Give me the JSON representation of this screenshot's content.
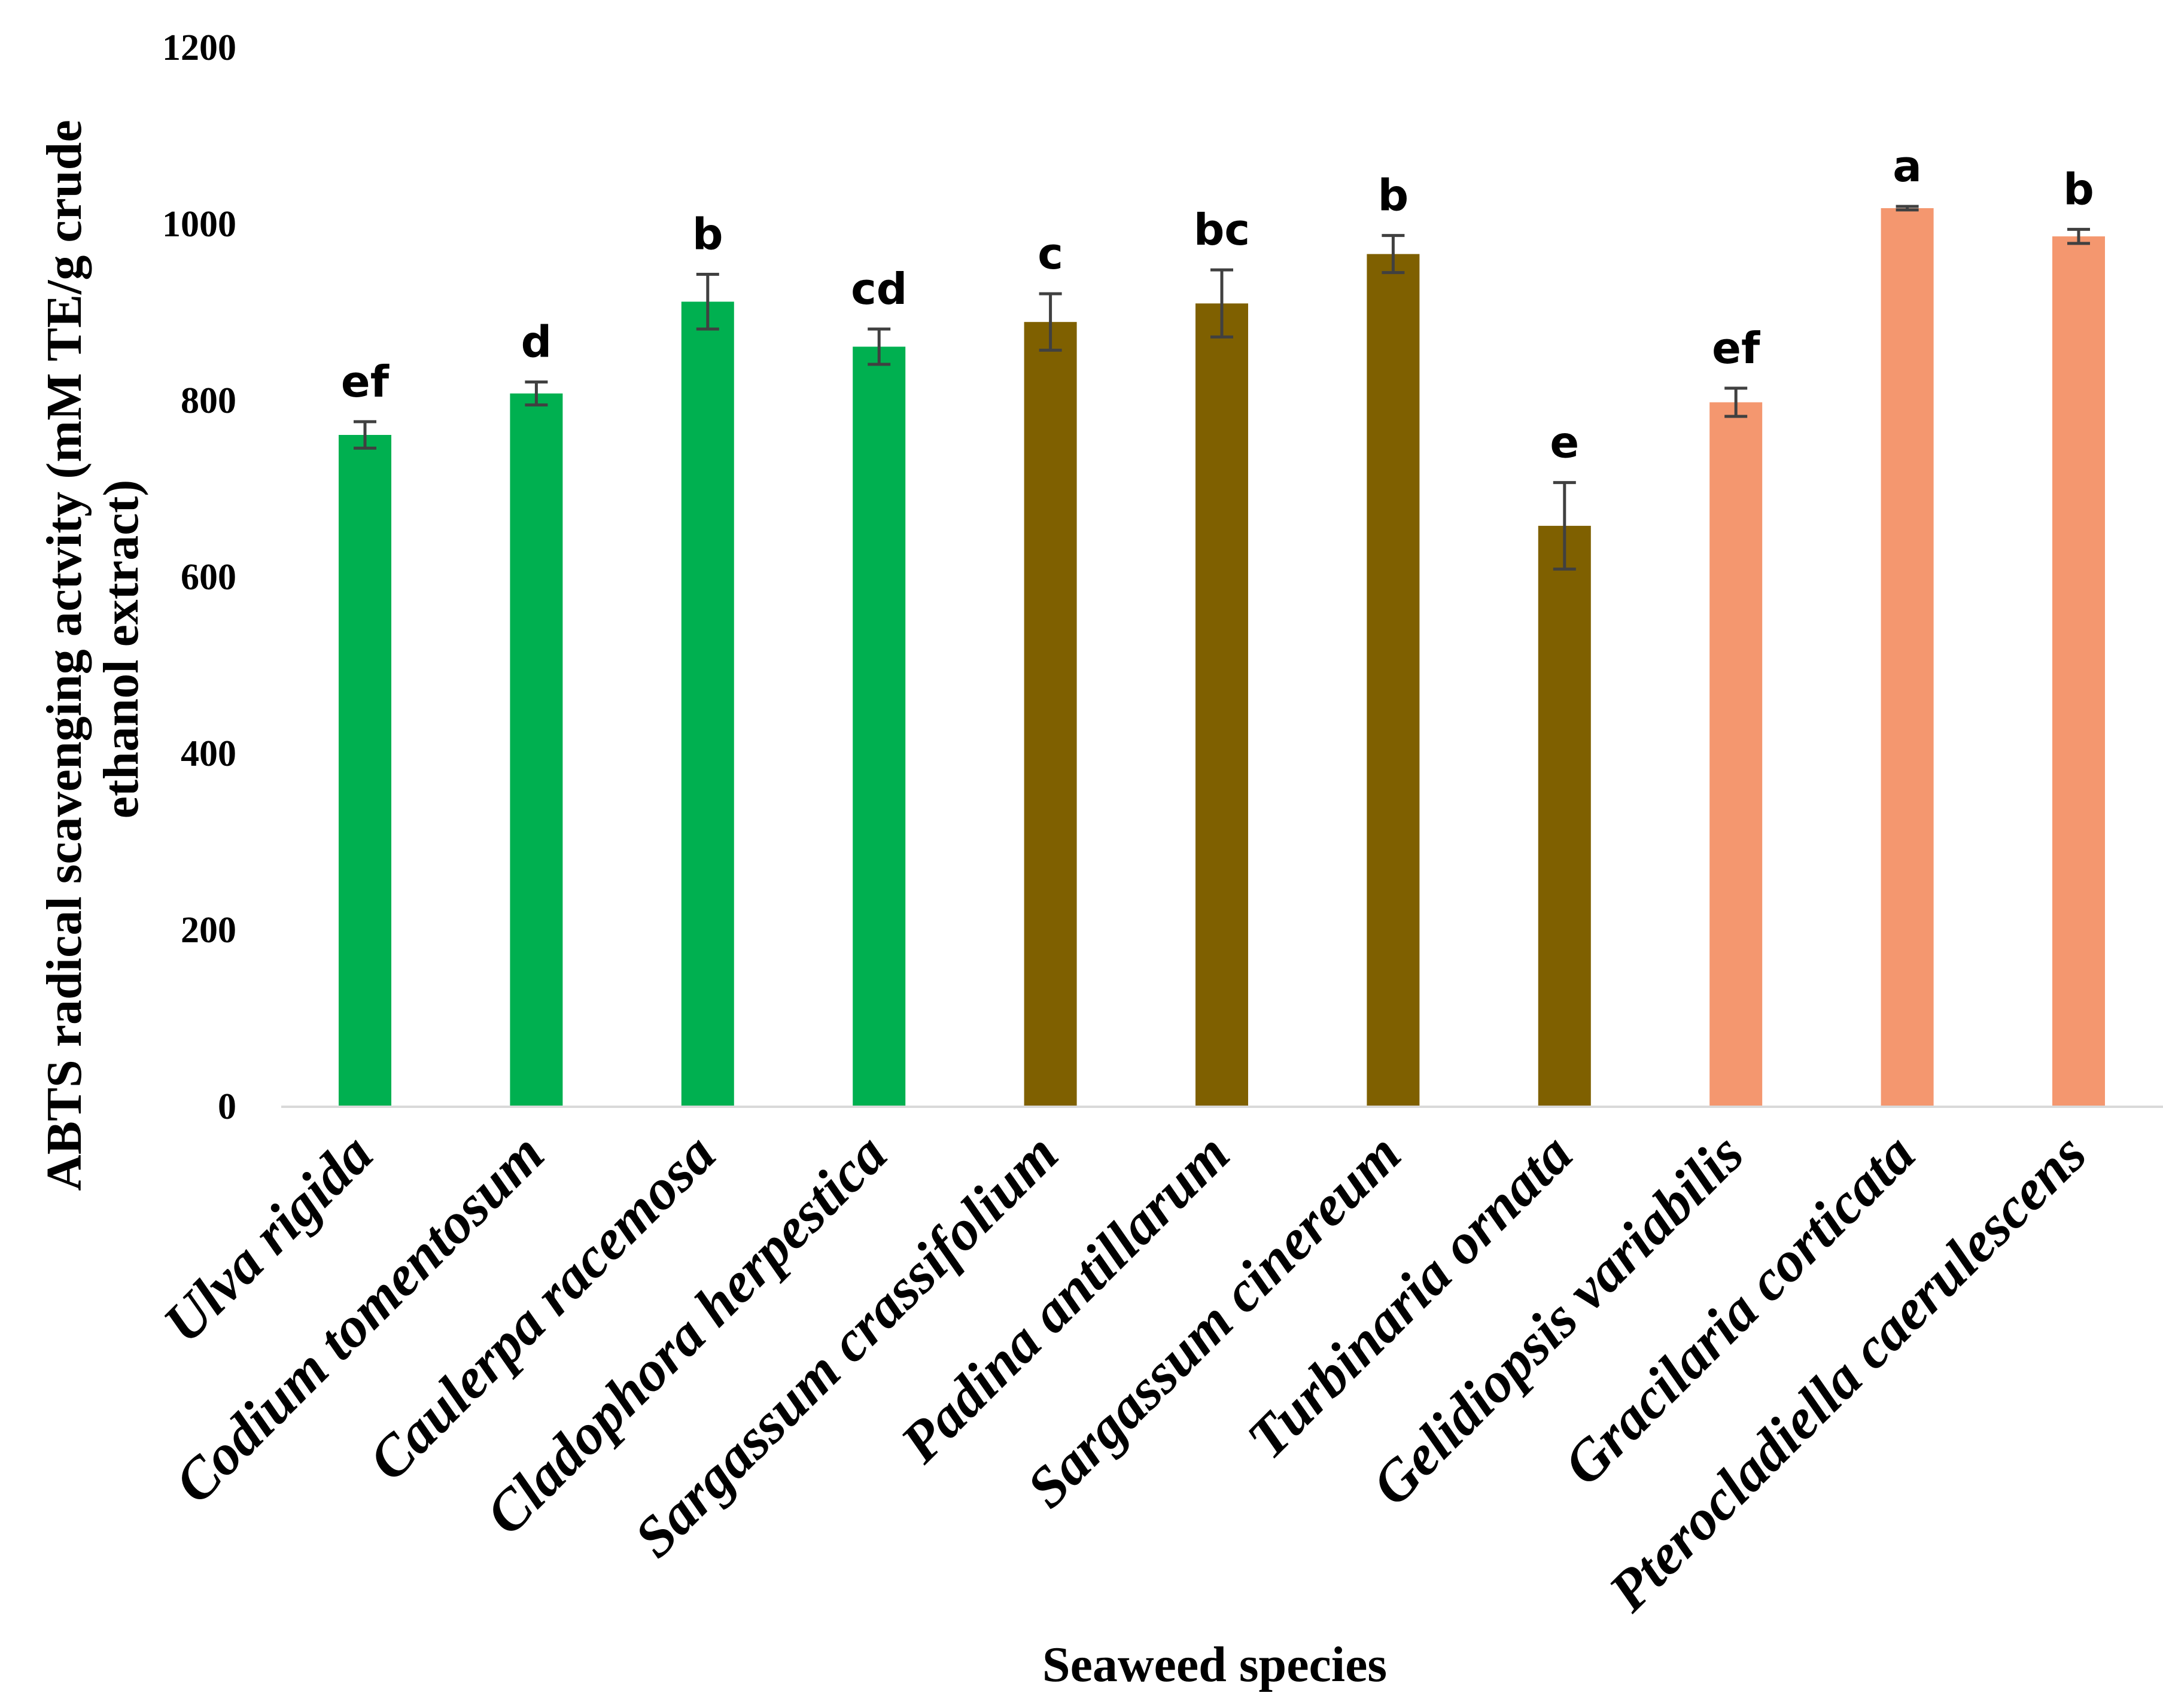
{
  "chart_data": {
    "type": "bar",
    "title": "",
    "xlabel": "Seaweed species",
    "ylabel_lines": [
      "ABTS radical scavenging actvity (mM TE/g crude",
      "ethanol extract)"
    ],
    "ylim": [
      0,
      1200
    ],
    "yticks": [
      "0",
      "200",
      "400",
      "600",
      "800",
      "1000",
      "1200"
    ],
    "grid": false,
    "legend": "none",
    "categories": [
      "Ulva rigida",
      "Codium tomentosum",
      "Caulerpa racemosa",
      "Cladophora herpestica",
      "Sargassum crassifolium",
      "Padina antillarum",
      "Sargassum cinereum",
      "Turbinaria ornata",
      "Gelidiopsis variabilis",
      "Gracilaria corticata",
      "Pterocladiella caerulescens"
    ],
    "values": [
      760,
      807,
      911,
      860,
      888,
      909,
      965,
      657,
      797,
      1017,
      985
    ],
    "errors": [
      15,
      13,
      31,
      20,
      32,
      38,
      21,
      49,
      16,
      2,
      8
    ],
    "significance_letters": [
      "ef",
      "d",
      "b",
      "cd",
      "c",
      "bc",
      "b",
      "e",
      "ef",
      "a",
      "b"
    ],
    "bar_colors": [
      "#00B050",
      "#00B050",
      "#00B050",
      "#00B050",
      "#7F6000",
      "#7F6000",
      "#7F6000",
      "#7F6000",
      "#F4976F",
      "#F4976F",
      "#F4976F"
    ],
    "axis_color": "#D9D9D9",
    "error_bar_color": "#404040"
  }
}
